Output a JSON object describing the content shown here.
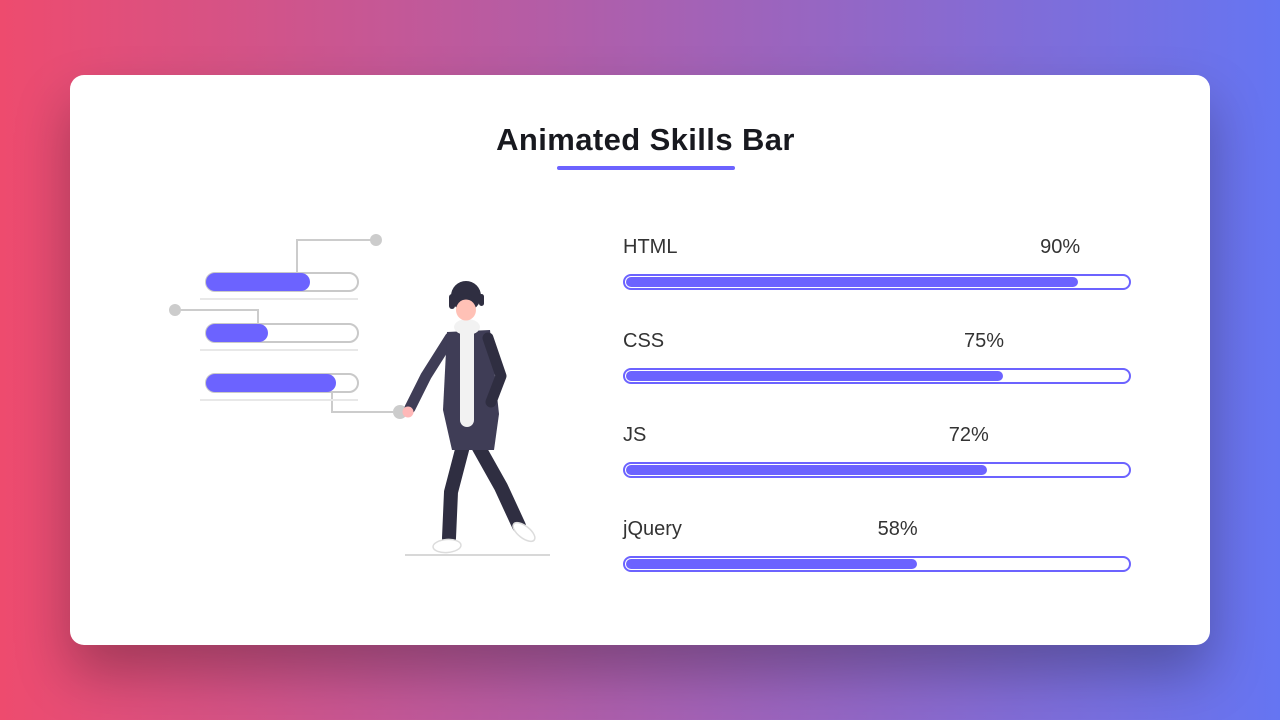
{
  "page": {
    "title": "Animated Skills Bar"
  },
  "theme": {
    "bg_left": "#ee4b6e",
    "bg_right": "#6575f2",
    "accent": "#6c63ff",
    "card_bg": "#ffffff",
    "text_dark": "#18191f",
    "label": "#333333"
  },
  "skills": [
    {
      "name": "HTML",
      "percent": 90,
      "percent_label": "90%"
    },
    {
      "name": "CSS",
      "percent": 75,
      "percent_label": "75%"
    },
    {
      "name": "JS",
      "percent": 72,
      "percent_label": "72%"
    },
    {
      "name": "jQuery",
      "percent": 58,
      "percent_label": "58%"
    }
  ],
  "illustration": {
    "label": "walking-person-with-progress-bars-illustration"
  }
}
